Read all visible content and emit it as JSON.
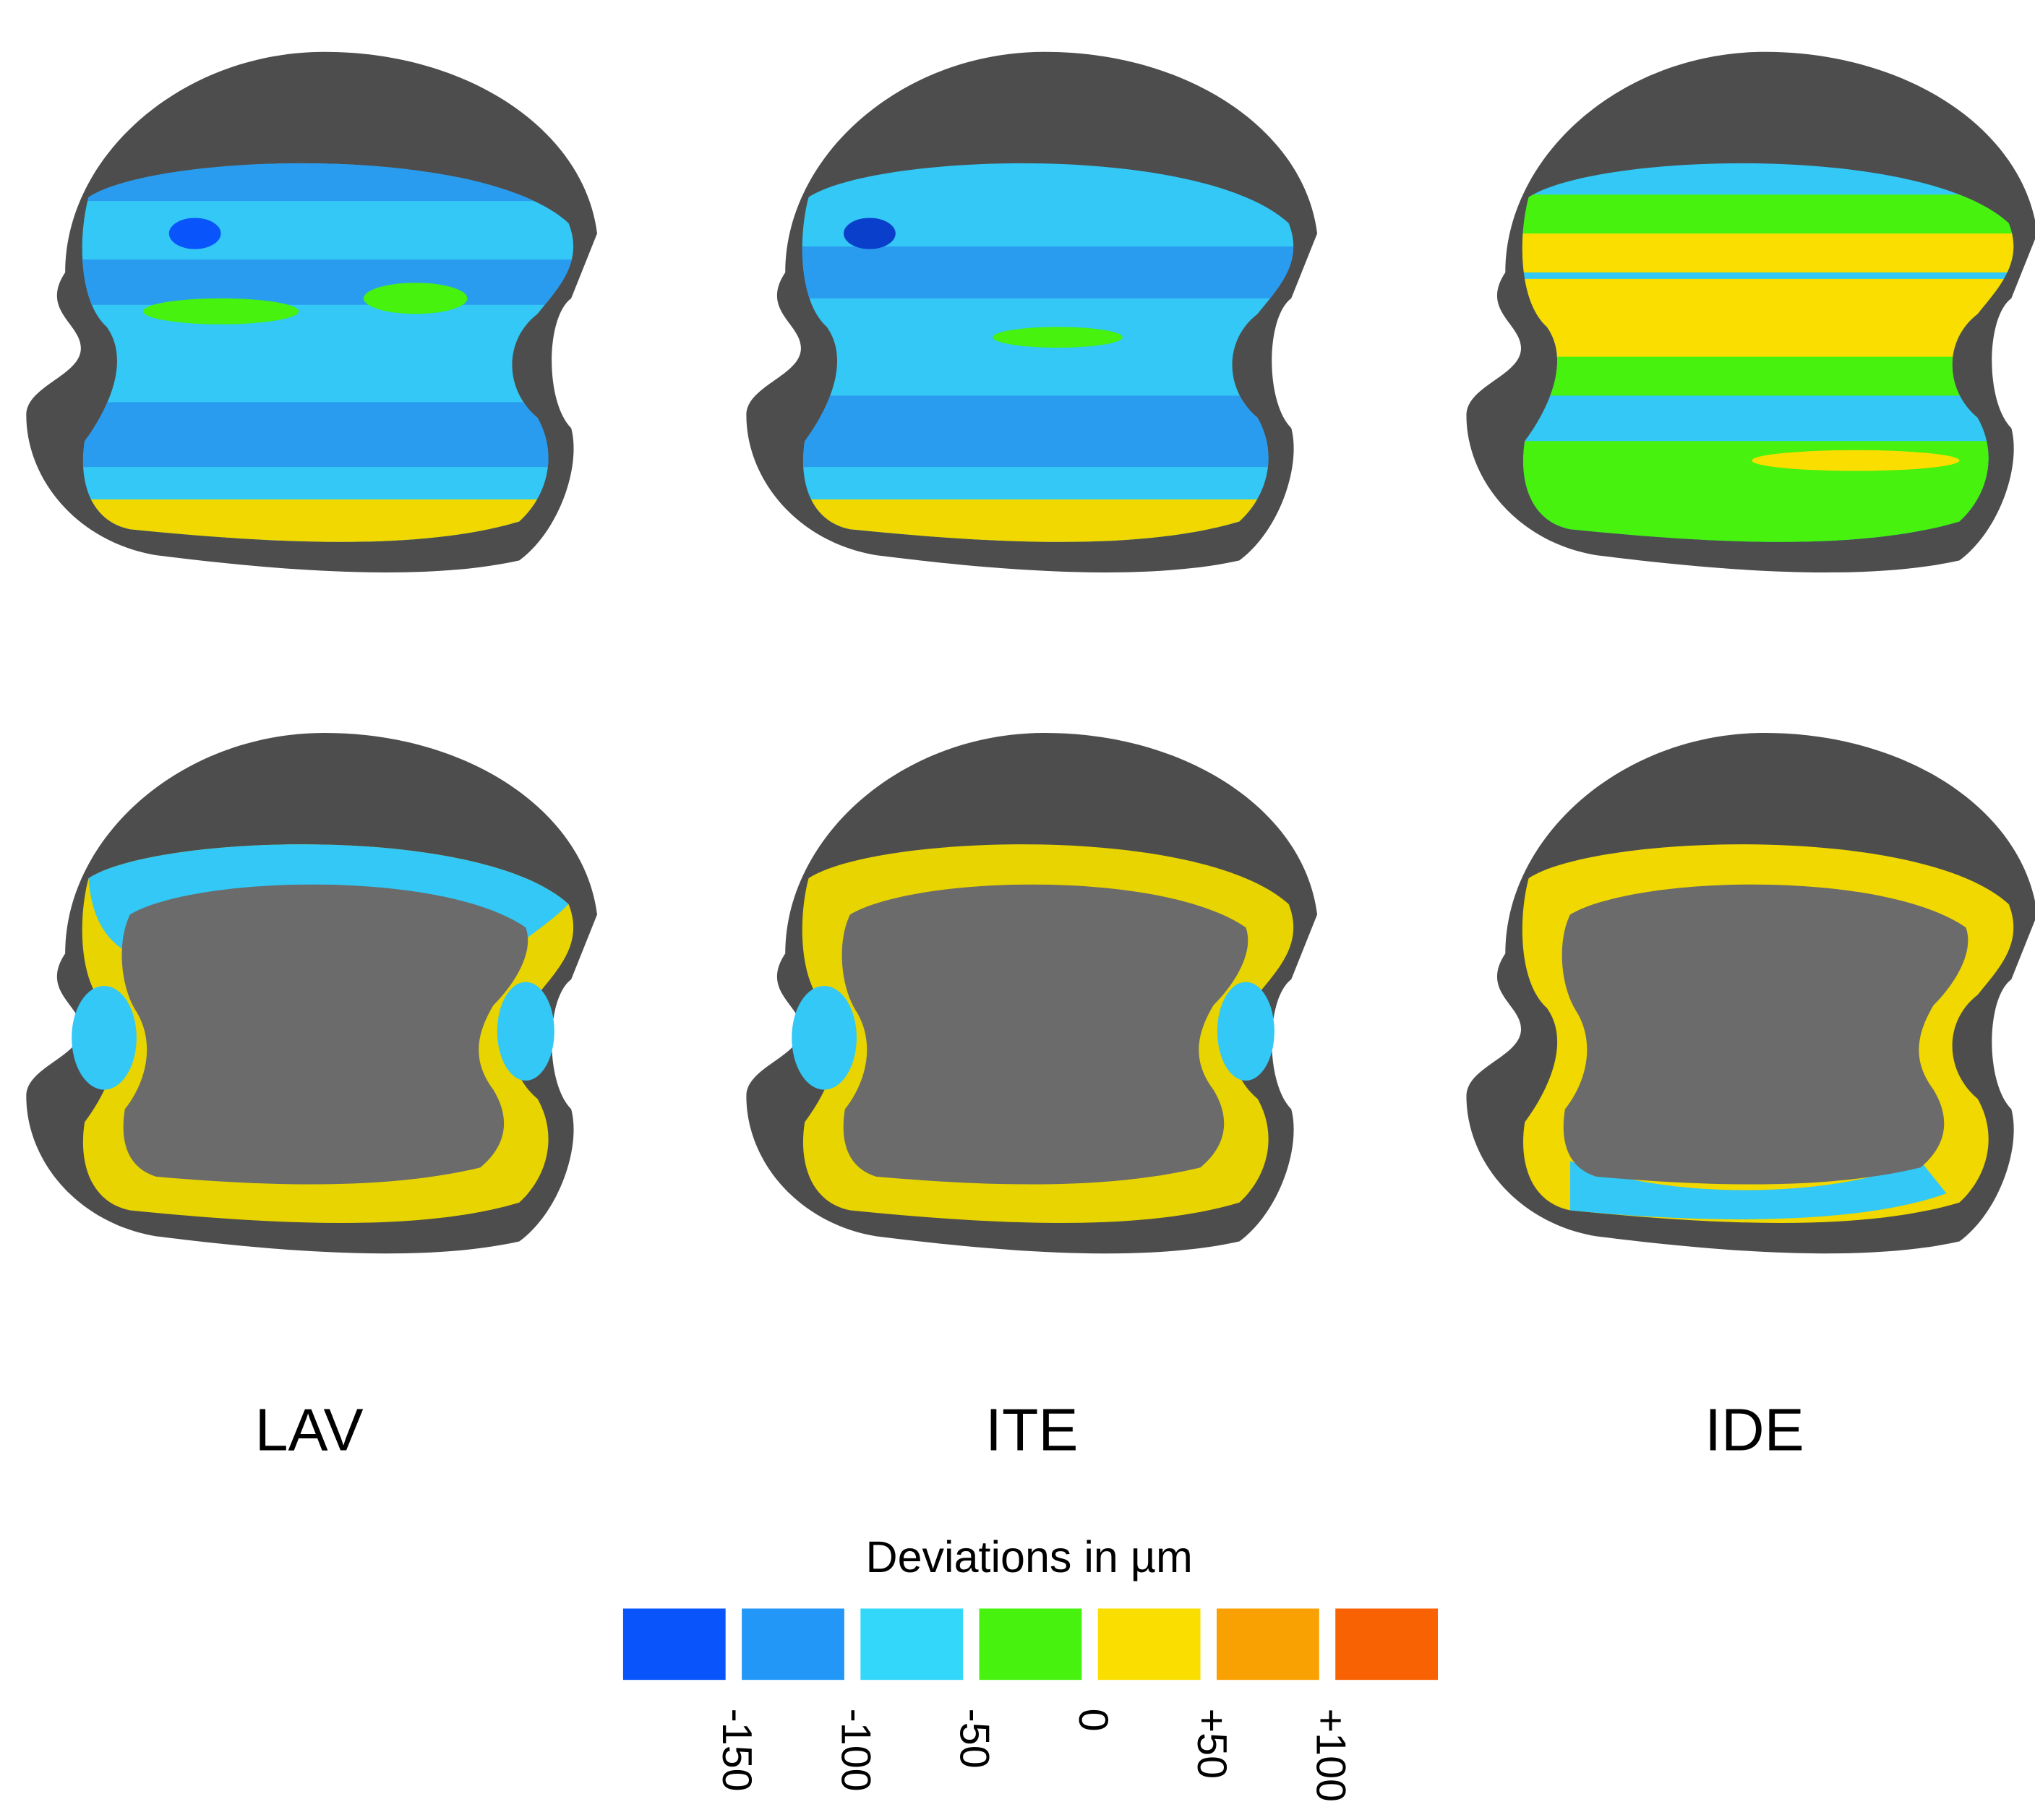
{
  "labels": [
    "LAV",
    "ITE",
    "IDE"
  ],
  "legend": {
    "title": "Deviations in µm",
    "colors": [
      "#0a55fb",
      "#2397f7",
      "#33d7f9",
      "#46f20e",
      "#fade00",
      "#f9a103",
      "#f86203"
    ],
    "ticks": [
      "-150",
      "-100",
      "-50",
      "0",
      "+50",
      "+100"
    ]
  }
}
